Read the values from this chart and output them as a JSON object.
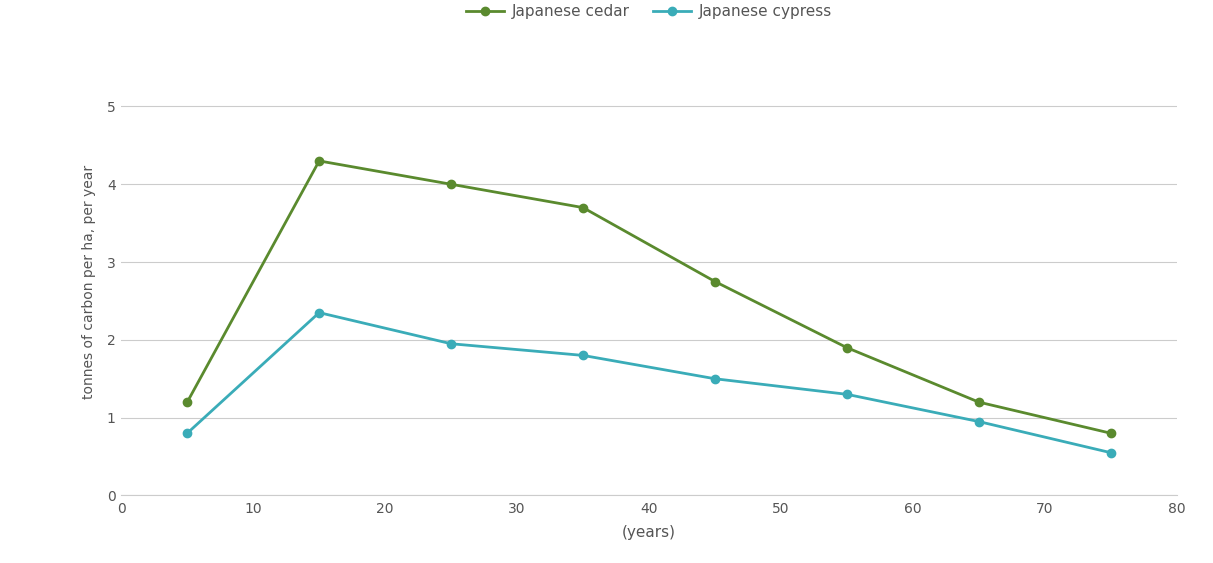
{
  "cedar_x": [
    5,
    15,
    25,
    35,
    45,
    55,
    65,
    75
  ],
  "cedar_y": [
    1.2,
    4.3,
    4.0,
    3.7,
    2.75,
    1.9,
    1.2,
    0.8
  ],
  "cypress_x": [
    5,
    15,
    25,
    35,
    45,
    55,
    65,
    75
  ],
  "cypress_y": [
    0.8,
    2.35,
    1.95,
    1.8,
    1.5,
    1.3,
    0.95,
    0.55
  ],
  "cedar_color": "#5a8a2e",
  "cypress_color": "#3aacb8",
  "cedar_label": "Japanese cedar",
  "cypress_label": "Japanese cypress",
  "xlabel": "(years)",
  "ylabel": "tonnes of carbon per ha, per year",
  "xlim": [
    0,
    80
  ],
  "ylim": [
    0,
    5.5
  ],
  "xticks": [
    0,
    10,
    20,
    30,
    40,
    50,
    60,
    70,
    80
  ],
  "yticks": [
    0,
    1,
    2,
    3,
    4,
    5
  ],
  "background_color": "#ffffff",
  "marker": "o",
  "marker_size": 6,
  "linewidth": 2,
  "grid_color": "#cccccc",
  "tick_color": "#555555",
  "spine_color": "#cccccc"
}
